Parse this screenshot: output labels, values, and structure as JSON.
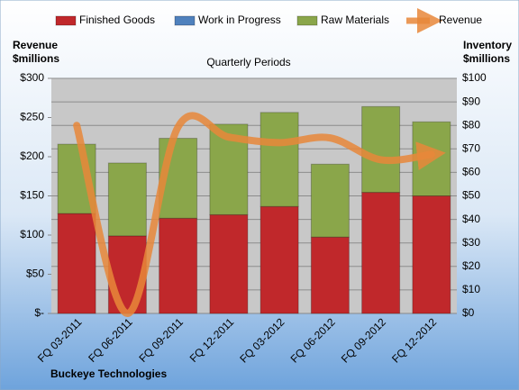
{
  "chart_data": {
    "type": "bar-line",
    "title": "Buckeye Technologies",
    "subtitle": "Quarterly Periods",
    "y_label": [
      "Revenue",
      "$millions"
    ],
    "y2_label": [
      "Inventory",
      "$millions"
    ],
    "categories": [
      "FQ 03-2011",
      "FQ 06-2011",
      "FQ 09-2011",
      "FQ 12-2011",
      "FQ 03-2012",
      "FQ 06-2012",
      "FQ 09-2012",
      "FQ 12-2012"
    ],
    "series": [
      {
        "name": "Finished Goods",
        "color": "#c0282b",
        "axis": "y2",
        "kind": "stacked-bar",
        "values": [
          42.5,
          33,
          40.5,
          42,
          45.5,
          32.5,
          51.5,
          50
        ]
      },
      {
        "name": "Work in Progress",
        "color": "#4f81bd",
        "axis": "y2",
        "kind": "stacked-bar",
        "values": [
          0,
          0,
          0,
          0,
          0,
          0,
          0,
          0
        ]
      },
      {
        "name": "Raw Materials",
        "color": "#8aa64a",
        "axis": "y2",
        "kind": "stacked-bar",
        "values": [
          29.5,
          31,
          34,
          38.5,
          40,
          31,
          36.5,
          31.5
        ]
      },
      {
        "name": "Revenue",
        "color": "#e8873a",
        "axis": "y",
        "kind": "line",
        "values": [
          240,
          0,
          238,
          225,
          218,
          224,
          196,
          203
        ]
      }
    ],
    "ylim": [
      0,
      300
    ],
    "yticks": [
      {
        "value": 0,
        "label": "$-"
      },
      {
        "value": 50,
        "label": "$50"
      },
      {
        "value": 100,
        "label": "$100"
      },
      {
        "value": 150,
        "label": "$150"
      },
      {
        "value": 200,
        "label": "$200"
      },
      {
        "value": 250,
        "label": "$250"
      },
      {
        "value": 300,
        "label": "$300"
      }
    ],
    "y2lim": [
      0,
      100
    ],
    "y2ticks": [
      {
        "value": 0,
        "label": "$0"
      },
      {
        "value": 10,
        "label": "$10"
      },
      {
        "value": 20,
        "label": "$20"
      },
      {
        "value": 30,
        "label": "$30"
      },
      {
        "value": 40,
        "label": "$40"
      },
      {
        "value": 50,
        "label": "$50"
      },
      {
        "value": 60,
        "label": "$60"
      },
      {
        "value": 70,
        "label": "$70"
      },
      {
        "value": 80,
        "label": "$80"
      },
      {
        "value": 90,
        "label": "$90"
      },
      {
        "value": 100,
        "label": "$100"
      }
    ],
    "grid": true
  }
}
